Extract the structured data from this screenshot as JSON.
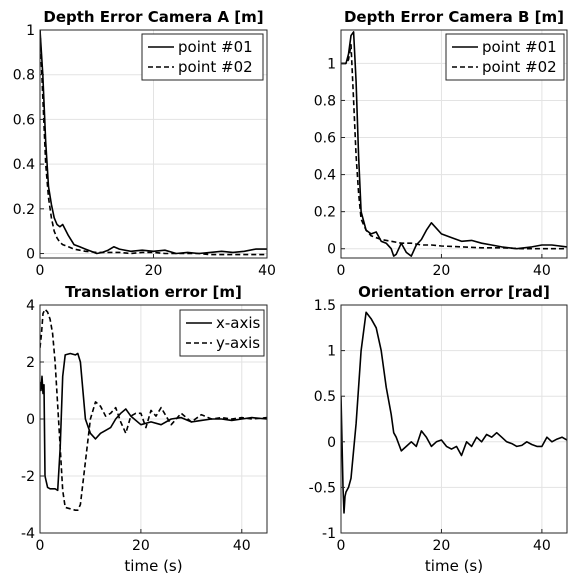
{
  "chart_data": [
    {
      "type": "line",
      "title": "Depth Error Camera A [m]",
      "xlabel": "",
      "ylabel": "",
      "xlim": [
        0,
        40
      ],
      "ylim": [
        -0.02,
        1.0
      ],
      "xticks": [
        0,
        20,
        40
      ],
      "yticks": [
        0,
        0.2,
        0.4,
        0.6,
        0.8,
        1
      ],
      "ytick_labels": [
        "0",
        "0.2",
        "0.4",
        "0.6",
        "0.8",
        "1"
      ],
      "grid": true,
      "legend_position": "top-right",
      "series": [
        {
          "name": "point #01",
          "style": "solid",
          "x": [
            0,
            0.5,
            1,
            1.5,
            2,
            2.5,
            3,
            3.5,
            4,
            5,
            6,
            7,
            8,
            9,
            10,
            11,
            12,
            13,
            14,
            16,
            18,
            20,
            22,
            24,
            26,
            28,
            30,
            32,
            34,
            36,
            38,
            40
          ],
          "y": [
            1.0,
            0.8,
            0.5,
            0.3,
            0.22,
            0.16,
            0.13,
            0.12,
            0.13,
            0.08,
            0.04,
            0.03,
            0.02,
            0.01,
            0.0,
            0.005,
            0.015,
            0.03,
            0.02,
            0.01,
            0.015,
            0.01,
            0.015,
            0.0,
            0.005,
            0.0,
            0.005,
            0.01,
            0.005,
            0.01,
            0.02,
            0.02
          ]
        },
        {
          "name": "point #02",
          "style": "dashed",
          "x": [
            0,
            0.5,
            1,
            1.5,
            2,
            2.5,
            3,
            3.5,
            4,
            5,
            6,
            7,
            8,
            10,
            12,
            14,
            16,
            18,
            20,
            22,
            24,
            26,
            28,
            30,
            32,
            34,
            36,
            38,
            40
          ],
          "y": [
            1.0,
            0.7,
            0.4,
            0.25,
            0.16,
            0.1,
            0.07,
            0.05,
            0.04,
            0.03,
            0.02,
            0.015,
            0.01,
            0.005,
            0.005,
            0.005,
            0.0,
            0.005,
            0.005,
            0.0,
            0.0,
            0.0,
            0.0,
            -0.005,
            -0.005,
            -0.005,
            -0.005,
            -0.005,
            -0.005
          ]
        }
      ]
    },
    {
      "type": "line",
      "title": "Depth Error Camera B [m]",
      "xlabel": "",
      "ylabel": "",
      "xlim": [
        0,
        45
      ],
      "ylim": [
        -0.05,
        1.18
      ],
      "xticks": [
        0,
        20,
        40
      ],
      "yticks": [
        0,
        0.2,
        0.4,
        0.6,
        0.8,
        1
      ],
      "ytick_labels": [
        "0",
        "0.2",
        "0.4",
        "0.6",
        "0.8",
        "1"
      ],
      "grid": true,
      "legend_position": "top-right",
      "series": [
        {
          "name": "point #01",
          "style": "solid",
          "x": [
            0,
            1,
            1.5,
            2,
            2.5,
            3,
            3.5,
            4,
            5,
            6,
            7,
            8,
            9,
            10,
            10.5,
            11,
            12,
            13,
            14,
            15,
            16,
            17,
            18,
            19,
            20,
            22,
            24,
            26,
            28,
            30,
            32,
            35,
            38,
            40,
            42,
            45
          ],
          "y": [
            1.0,
            1.0,
            1.05,
            1.15,
            1.17,
            0.9,
            0.5,
            0.2,
            0.1,
            0.08,
            0.09,
            0.04,
            0.03,
            0.0,
            -0.04,
            -0.03,
            0.03,
            -0.02,
            -0.04,
            0.02,
            0.05,
            0.1,
            0.14,
            0.11,
            0.08,
            0.06,
            0.04,
            0.045,
            0.03,
            0.02,
            0.01,
            0.0,
            0.01,
            0.02,
            0.02,
            0.01
          ]
        },
        {
          "name": "point #02",
          "style": "dashed",
          "x": [
            0,
            1,
            1.5,
            2,
            2.5,
            3,
            3.5,
            4,
            5,
            6,
            8,
            10,
            12,
            14,
            16,
            18,
            20,
            24,
            28,
            32,
            36,
            40,
            45
          ],
          "y": [
            1.0,
            1.0,
            1.02,
            1.1,
            0.8,
            0.5,
            0.3,
            0.16,
            0.1,
            0.07,
            0.05,
            0.04,
            0.03,
            0.03,
            0.02,
            0.02,
            0.015,
            0.01,
            0.005,
            0.005,
            0.0,
            0.0,
            0.0
          ]
        }
      ]
    },
    {
      "type": "line",
      "title": "Translation error [m]",
      "xlabel": "time (s)",
      "ylabel": "",
      "xlim": [
        0,
        45
      ],
      "ylim": [
        -4,
        4
      ],
      "xticks": [
        0,
        20,
        40
      ],
      "yticks": [
        -4,
        -2,
        0,
        2,
        4
      ],
      "ytick_labels": [
        "-4",
        "-2",
        "0",
        "2",
        "4"
      ],
      "grid": true,
      "legend_position": "top-right",
      "series": [
        {
          "name": "x-axis",
          "style": "solid",
          "x": [
            0,
            0.2,
            0.4,
            0.6,
            0.8,
            1,
            1.5,
            2,
            3,
            3.5,
            4,
            4.5,
            5,
            6,
            7,
            7.5,
            8,
            8.5,
            9,
            10,
            11,
            12,
            13,
            14,
            15,
            16,
            17,
            18,
            20,
            22,
            24,
            26,
            28,
            30,
            32,
            34,
            36,
            38,
            40,
            42,
            45
          ],
          "y": [
            1.3,
            1.0,
            1.5,
            0.9,
            1.2,
            -2.0,
            -2.4,
            -2.45,
            -2.45,
            -2.5,
            -1.0,
            1.5,
            2.25,
            2.3,
            2.25,
            2.3,
            2.0,
            1.0,
            0.0,
            -0.5,
            -0.7,
            -0.5,
            -0.4,
            -0.3,
            0.0,
            0.2,
            0.35,
            0.1,
            -0.2,
            -0.1,
            -0.2,
            0.0,
            0.05,
            -0.1,
            -0.05,
            0.0,
            0.0,
            -0.05,
            0.0,
            0.05,
            0.0
          ]
        },
        {
          "name": "y-axis",
          "style": "dashed",
          "x": [
            0,
            0.3,
            0.6,
            1,
            1.5,
            2,
            2.5,
            3,
            4,
            4.5,
            5,
            6,
            7,
            7.5,
            8,
            9,
            10,
            11,
            12,
            13,
            14,
            15,
            16,
            17,
            18,
            19,
            20,
            21,
            22,
            23,
            24,
            25,
            26,
            28,
            30,
            32,
            34,
            36,
            38,
            40,
            42,
            45
          ],
          "y": [
            2.5,
            3.0,
            3.7,
            3.85,
            3.75,
            3.5,
            3.0,
            2.0,
            -1.0,
            -2.5,
            -3.1,
            -3.15,
            -3.2,
            -3.2,
            -3.0,
            -1.5,
            0.0,
            0.6,
            0.45,
            0.1,
            0.2,
            0.4,
            -0.1,
            -0.5,
            0.1,
            0.2,
            0.2,
            -0.3,
            0.3,
            0.1,
            0.4,
            0.1,
            -0.2,
            0.2,
            -0.1,
            0.15,
            0.0,
            0.05,
            0.0,
            0.05,
            0.0,
            0.05
          ]
        }
      ]
    },
    {
      "type": "line",
      "title": "Orientation error [rad]",
      "xlabel": "time (s)",
      "ylabel": "",
      "xlim": [
        0,
        45
      ],
      "ylim": [
        -1,
        1.5
      ],
      "xticks": [
        0,
        20,
        40
      ],
      "yticks": [
        -1,
        -0.5,
        0,
        0.5,
        1,
        1.5
      ],
      "ytick_labels": [
        "-1",
        "-0.5",
        "0",
        "0.5",
        "1",
        "1.5"
      ],
      "grid": true,
      "legend_position": "none",
      "series": [
        {
          "name": "",
          "style": "solid",
          "x": [
            0,
            0.2,
            0.4,
            0.6,
            0.8,
            1,
            1.5,
            2,
            3,
            4,
            5,
            6,
            7,
            8,
            9,
            10,
            10.5,
            11,
            12,
            13,
            14,
            15,
            16,
            17,
            18,
            19,
            20,
            21,
            22,
            23,
            24,
            25,
            26,
            27,
            28,
            29,
            30,
            31,
            32,
            33,
            34,
            35,
            36,
            37,
            38,
            39,
            40,
            41,
            42,
            43,
            44,
            45
          ],
          "y": [
            0.5,
            0.0,
            -0.5,
            -0.78,
            -0.6,
            -0.55,
            -0.5,
            -0.4,
            0.2,
            1.0,
            1.42,
            1.35,
            1.25,
            1.0,
            0.6,
            0.3,
            0.1,
            0.05,
            -0.1,
            -0.05,
            0.0,
            -0.05,
            0.12,
            0.05,
            -0.05,
            0.0,
            0.02,
            -0.05,
            -0.08,
            -0.05,
            -0.15,
            0.0,
            -0.05,
            0.05,
            0.0,
            0.08,
            0.05,
            0.1,
            0.05,
            0.0,
            -0.02,
            -0.05,
            -0.04,
            0.0,
            -0.03,
            -0.05,
            -0.05,
            0.05,
            0.0,
            0.03,
            0.05,
            0.02
          ]
        }
      ]
    }
  ]
}
